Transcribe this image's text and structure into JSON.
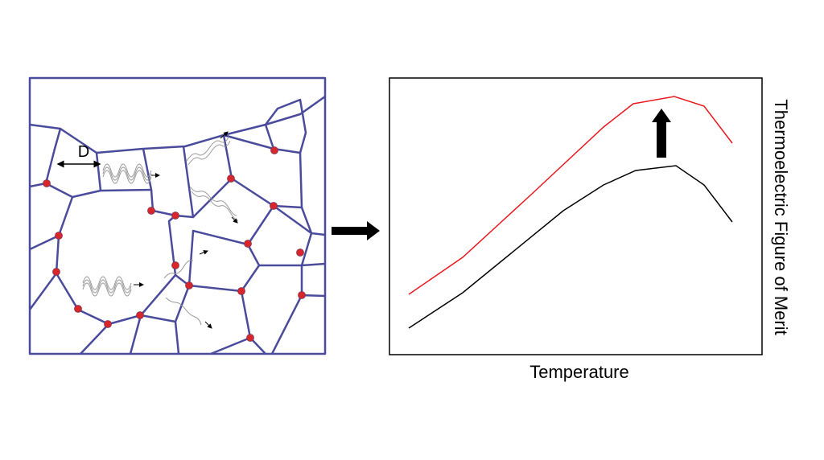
{
  "labels": {
    "grain_size": "D",
    "x_axis": "Temperature",
    "y_axis": "Thermoelectric Figure of Merit"
  }
}
